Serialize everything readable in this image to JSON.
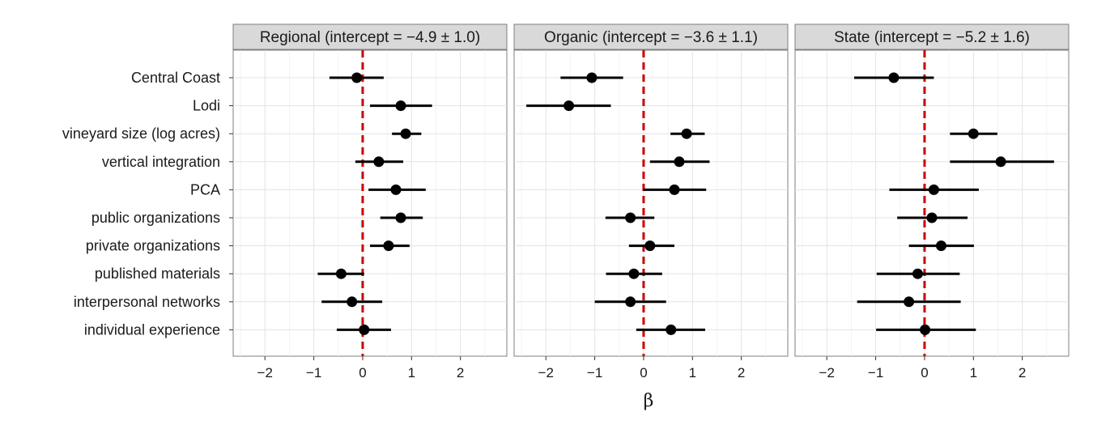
{
  "chart_data": {
    "type": "scatter",
    "subtype": "coefficient-plot-with-error-bars",
    "xlabel": "β",
    "xlim": [
      -2.65,
      2.95
    ],
    "xticks": [
      -2,
      -1,
      0,
      1,
      2
    ],
    "xtick_labels": [
      "−2",
      "−1",
      "0",
      "1",
      "2"
    ],
    "reference_line": {
      "x": 0,
      "color": "#cc0000",
      "style": "dashed"
    },
    "grid": true,
    "point_color": "#000000",
    "categories": [
      "Central Coast",
      "Lodi",
      "vineyard size (log acres)",
      "vertical integration",
      "PCA",
      "public organizations",
      "private organizations",
      "published materials",
      "interpersonal networks",
      "individual experience"
    ],
    "panels": [
      {
        "title": "Regional (intercept = −4.9 ± 1.0)",
        "estimates": [
          -0.12,
          0.78,
          0.88,
          0.33,
          0.68,
          0.78,
          0.53,
          -0.44,
          -0.22,
          0.03
        ],
        "lower": [
          -0.68,
          0.15,
          0.6,
          -0.15,
          0.12,
          0.36,
          0.15,
          -0.92,
          -0.84,
          -0.53
        ],
        "upper": [
          0.43,
          1.42,
          1.2,
          0.83,
          1.29,
          1.23,
          0.96,
          0.03,
          0.4,
          0.58
        ]
      },
      {
        "title": "Organic (intercept = −3.6 ± 1.1)",
        "estimates": [
          -1.06,
          -1.53,
          0.88,
          0.73,
          0.63,
          -0.27,
          0.13,
          -0.2,
          -0.27,
          0.56
        ],
        "lower": [
          -1.7,
          -2.4,
          0.55,
          0.13,
          0.0,
          -0.78,
          -0.3,
          -0.77,
          -1.0,
          -0.15
        ],
        "upper": [
          -0.42,
          -0.67,
          1.25,
          1.35,
          1.28,
          0.22,
          0.63,
          0.38,
          0.46,
          1.26
        ]
      },
      {
        "title": "State (intercept = −5.2 ± 1.6)",
        "estimates": [
          -0.63,
          null,
          1.0,
          1.56,
          0.19,
          0.15,
          0.34,
          -0.14,
          -0.32,
          0.01
        ],
        "lower": [
          -1.44,
          null,
          0.52,
          0.52,
          -0.72,
          -0.56,
          -0.32,
          -0.98,
          -1.38,
          -0.99
        ],
        "upper": [
          0.19,
          null,
          1.49,
          2.65,
          1.11,
          0.88,
          1.01,
          0.72,
          0.74,
          1.05
        ]
      }
    ]
  }
}
